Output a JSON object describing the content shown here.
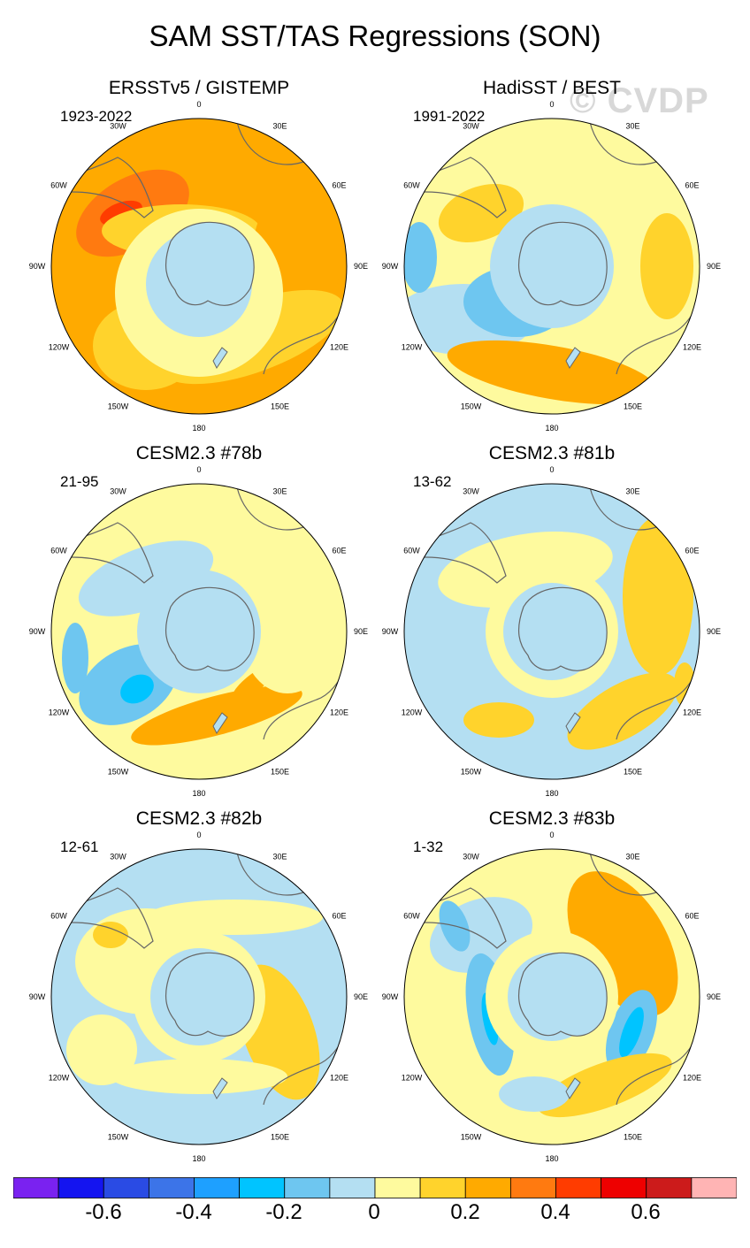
{
  "figure": {
    "title": "SAM SST/TAS Regressions (SON)",
    "watermark": "© CVDP"
  },
  "lon_labels": [
    "0",
    "30E",
    "60E",
    "90E",
    "120E",
    "150E",
    "180",
    "150W",
    "120W",
    "90W",
    "60W",
    "30W"
  ],
  "panels": [
    {
      "title": "ERSSTv5 / GISTEMP",
      "years": "1923-2022"
    },
    {
      "title": "HadiSST / BEST",
      "years": "1991-2022"
    },
    {
      "title": "CESM2.3 #78b",
      "years": "21-95"
    },
    {
      "title": "CESM2.3 #81b",
      "years": "13-62"
    },
    {
      "title": "CESM2.3 #82b",
      "years": "12-61"
    },
    {
      "title": "CESM2.3 #83b",
      "years": "1-32"
    }
  ],
  "colorbar": {
    "colors": [
      "#7a22f0",
      "#1414f0",
      "#2a4be4",
      "#3c74e8",
      "#1ea0ff",
      "#00c4ff",
      "#6ec6f0",
      "#b4dff2",
      "#fefa9e",
      "#ffd32c",
      "#ffaa00",
      "#ff7a10",
      "#ff3c00",
      "#ee0000",
      "#cc1b1b",
      "#ffb4b4"
    ],
    "labels": [
      "-0.6",
      "-0.4",
      "-0.2",
      "0",
      "0.2",
      "0.4",
      "0.6"
    ]
  }
}
